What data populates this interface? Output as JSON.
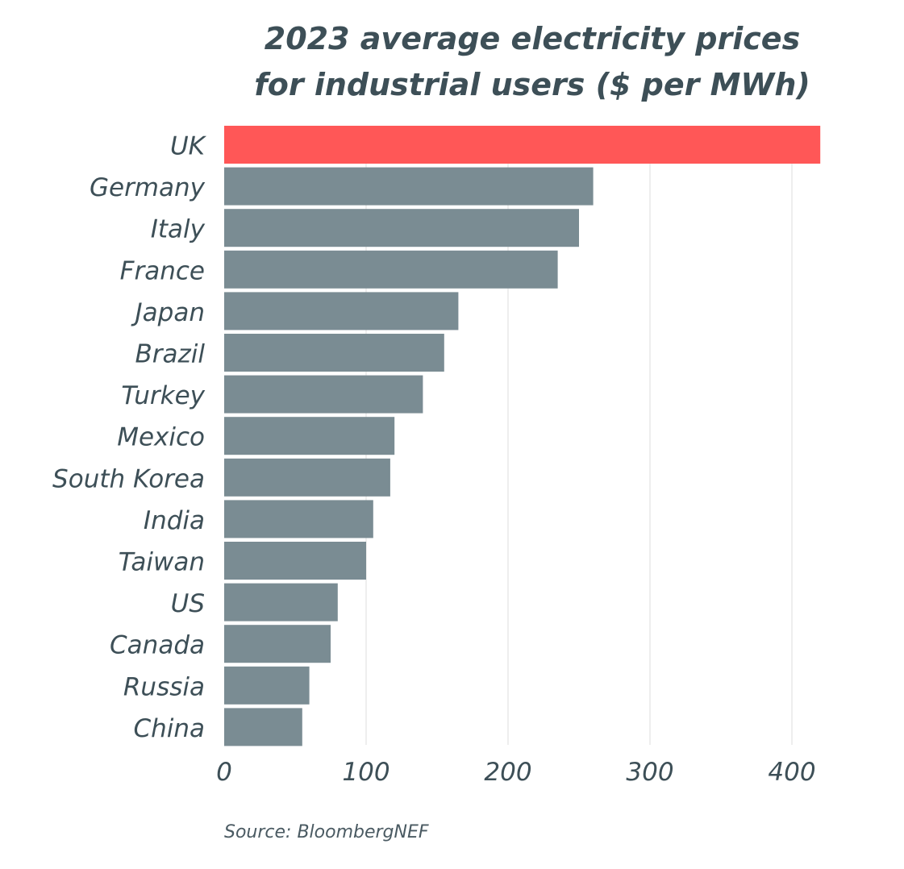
{
  "chart_data": {
    "type": "bar",
    "orientation": "horizontal",
    "title": [
      "2023 average electricity prices",
      "for industrial users ($ per MWh)"
    ],
    "categories": [
      "UK",
      "Germany",
      "Italy",
      "France",
      "Japan",
      "Brazil",
      "Turkey",
      "Mexico",
      "South Korea",
      "India",
      "Taiwan",
      "US",
      "Canada",
      "Russia",
      "China"
    ],
    "values": [
      420,
      260,
      250,
      235,
      165,
      155,
      140,
      120,
      117,
      105,
      100,
      80,
      75,
      60,
      55
    ],
    "xlim": [
      0,
      420
    ],
    "x_ticks": [
      0,
      100,
      200,
      300,
      400
    ],
    "grid": "vertical",
    "highlight_category": "UK",
    "colors": {
      "highlight": "#ff5757",
      "bar": "#7a8c93",
      "grid": "#dddddd",
      "text": "#3d4f57"
    }
  },
  "source": "Source: BloombergNEF"
}
